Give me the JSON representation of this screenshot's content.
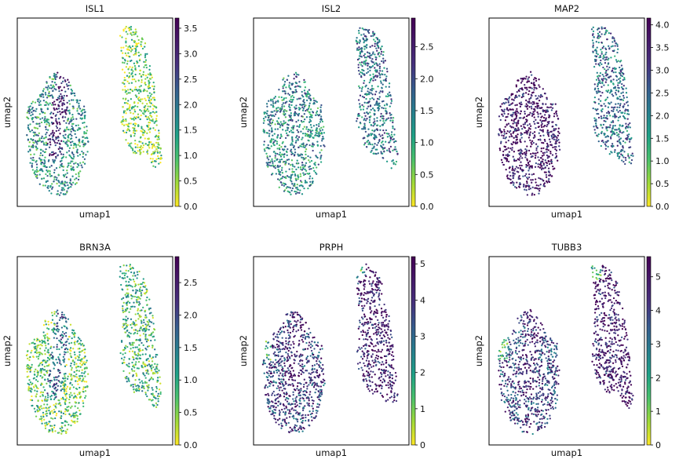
{
  "figure": {
    "colormap": "viridis_r"
  },
  "chart_data": [
    {
      "type": "scatter",
      "title": "ISL1",
      "xlabel": "umap1",
      "ylabel": "umap2",
      "color_range": [
        0,
        3.7
      ],
      "colorbar_ticks": [
        "0.0",
        "0.5",
        "1.0",
        "1.5",
        "2.0",
        "2.5",
        "3.0",
        "3.5"
      ],
      "colorbar_values": [
        0,
        0.5,
        1,
        1.5,
        2,
        2.5,
        3,
        3.5
      ],
      "bias": {
        "left": 0.42,
        "right": 0.18,
        "stripe": 0.82
      }
    },
    {
      "type": "scatter",
      "title": "ISL2",
      "xlabel": "umap1",
      "ylabel": "umap2",
      "color_range": [
        0,
        2.95
      ],
      "colorbar_ticks": [
        "0.0",
        "0.5",
        "1.0",
        "1.5",
        "2.0",
        "2.5"
      ],
      "colorbar_values": [
        0,
        0.5,
        1,
        1.5,
        2,
        2.5
      ],
      "bias": {
        "left": 0.45,
        "right": 0.55,
        "stripe": 0.55
      }
    },
    {
      "type": "scatter",
      "title": "MAP2",
      "xlabel": "umap1",
      "ylabel": "umap2",
      "color_range": [
        0,
        4.15
      ],
      "colorbar_ticks": [
        "0.0",
        "0.5",
        "1.0",
        "1.5",
        "2.0",
        "2.5",
        "3.0",
        "3.5",
        "4.0"
      ],
      "colorbar_values": [
        0,
        0.5,
        1,
        1.5,
        2,
        2.5,
        3,
        3.5,
        4
      ],
      "bias": {
        "left": 0.88,
        "right": 0.55,
        "stripe": 0.9
      }
    },
    {
      "type": "scatter",
      "title": "BRN3A",
      "xlabel": "umap1",
      "ylabel": "umap2",
      "color_range": [
        0,
        2.9
      ],
      "colorbar_ticks": [
        "0.0",
        "0.5",
        "1.0",
        "1.5",
        "2.0",
        "2.5"
      ],
      "colorbar_values": [
        0,
        0.5,
        1,
        1.5,
        2,
        2.5
      ],
      "bias": {
        "left": 0.22,
        "right": 0.3,
        "stripe": 0.6
      }
    },
    {
      "type": "scatter",
      "title": "PRPH",
      "xlabel": "umap1",
      "ylabel": "umap2",
      "color_range": [
        0,
        5.2
      ],
      "colorbar_ticks": [
        "0",
        "1",
        "2",
        "3",
        "4",
        "5"
      ],
      "colorbar_values": [
        0,
        1,
        2,
        3,
        4,
        5
      ],
      "bias": {
        "left": 0.72,
        "right": 0.86,
        "stripe": 0.85
      }
    },
    {
      "type": "scatter",
      "title": "TUBB3",
      "xlabel": "umap1",
      "ylabel": "umap2",
      "color_range": [
        0,
        5.6
      ],
      "colorbar_ticks": [
        "0",
        "1",
        "2",
        "3",
        "4",
        "5"
      ],
      "colorbar_values": [
        0,
        1,
        2,
        3,
        4,
        5
      ],
      "bias": {
        "left": 0.72,
        "right": 0.88,
        "stripe": 0.85
      }
    }
  ]
}
